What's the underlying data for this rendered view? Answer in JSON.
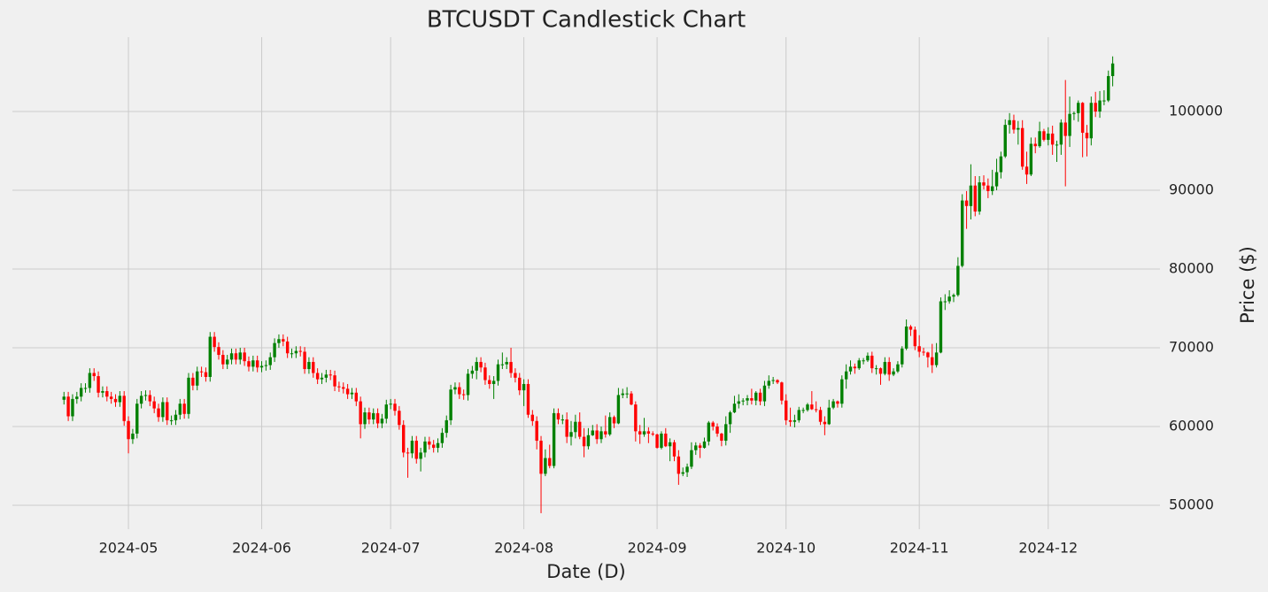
{
  "chart_data": {
    "type": "candlestick",
    "title": "BTCUSDT Candlestick Chart",
    "x_label": "Date (D)",
    "y_label": "Price ($)",
    "x": [
      "2024-04-16",
      "2024-04-17",
      "2024-04-18",
      "2024-04-19",
      "2024-04-20",
      "2024-04-21",
      "2024-04-22",
      "2024-04-23",
      "2024-04-24",
      "2024-04-25",
      "2024-04-26",
      "2024-04-27",
      "2024-04-28",
      "2024-04-29",
      "2024-04-30",
      "2024-05-01",
      "2024-05-02",
      "2024-05-03",
      "2024-05-04",
      "2024-05-05",
      "2024-05-06",
      "2024-05-07",
      "2024-05-08",
      "2024-05-09",
      "2024-05-10",
      "2024-05-11",
      "2024-05-12",
      "2024-05-13",
      "2024-05-14",
      "2024-05-15",
      "2024-05-16",
      "2024-05-17",
      "2024-05-18",
      "2024-05-19",
      "2024-05-20",
      "2024-05-21",
      "2024-05-22",
      "2024-05-23",
      "2024-05-24",
      "2024-05-25",
      "2024-05-26",
      "2024-05-27",
      "2024-05-28",
      "2024-05-29",
      "2024-05-30",
      "2024-05-31",
      "2024-06-01",
      "2024-06-02",
      "2024-06-03",
      "2024-06-04",
      "2024-06-05",
      "2024-06-06",
      "2024-06-07",
      "2024-06-08",
      "2024-06-09",
      "2024-06-10",
      "2024-06-11",
      "2024-06-12",
      "2024-06-13",
      "2024-06-14",
      "2024-06-15",
      "2024-06-16",
      "2024-06-17",
      "2024-06-18",
      "2024-06-19",
      "2024-06-20",
      "2024-06-21",
      "2024-06-22",
      "2024-06-23",
      "2024-06-24",
      "2024-06-25",
      "2024-06-26",
      "2024-06-27",
      "2024-06-28",
      "2024-06-29",
      "2024-06-30",
      "2024-07-01",
      "2024-07-02",
      "2024-07-03",
      "2024-07-04",
      "2024-07-05",
      "2024-07-06",
      "2024-07-07",
      "2024-07-08",
      "2024-07-09",
      "2024-07-10",
      "2024-07-11",
      "2024-07-12",
      "2024-07-13",
      "2024-07-14",
      "2024-07-15",
      "2024-07-16",
      "2024-07-17",
      "2024-07-18",
      "2024-07-19",
      "2024-07-20",
      "2024-07-21",
      "2024-07-22",
      "2024-07-23",
      "2024-07-24",
      "2024-07-25",
      "2024-07-26",
      "2024-07-27",
      "2024-07-28",
      "2024-07-29",
      "2024-07-30",
      "2024-07-31",
      "2024-08-01",
      "2024-08-02",
      "2024-08-03",
      "2024-08-04",
      "2024-08-05",
      "2024-08-06",
      "2024-08-07",
      "2024-08-08",
      "2024-08-09",
      "2024-08-10",
      "2024-08-11",
      "2024-08-12",
      "2024-08-13",
      "2024-08-14",
      "2024-08-15",
      "2024-08-16",
      "2024-08-17",
      "2024-08-18",
      "2024-08-19",
      "2024-08-20",
      "2024-08-21",
      "2024-08-22",
      "2024-08-23",
      "2024-08-24",
      "2024-08-25",
      "2024-08-26",
      "2024-08-27",
      "2024-08-28",
      "2024-08-29",
      "2024-08-30",
      "2024-08-31",
      "2024-09-01",
      "2024-09-02",
      "2024-09-03",
      "2024-09-04",
      "2024-09-05",
      "2024-09-06",
      "2024-09-07",
      "2024-09-08",
      "2024-09-09",
      "2024-09-10",
      "2024-09-11",
      "2024-09-12",
      "2024-09-13",
      "2024-09-14",
      "2024-09-15",
      "2024-09-16",
      "2024-09-17",
      "2024-09-18",
      "2024-09-19",
      "2024-09-20",
      "2024-09-21",
      "2024-09-22",
      "2024-09-23",
      "2024-09-24",
      "2024-09-25",
      "2024-09-26",
      "2024-09-27",
      "2024-09-28",
      "2024-09-29",
      "2024-09-30",
      "2024-10-01",
      "2024-10-02",
      "2024-10-03",
      "2024-10-04",
      "2024-10-05",
      "2024-10-06",
      "2024-10-07",
      "2024-10-08",
      "2024-10-09",
      "2024-10-10",
      "2024-10-11",
      "2024-10-12",
      "2024-10-13",
      "2024-10-14",
      "2024-10-15",
      "2024-10-16",
      "2024-10-17",
      "2024-10-18",
      "2024-10-19",
      "2024-10-20",
      "2024-10-21",
      "2024-10-22",
      "2024-10-23",
      "2024-10-24",
      "2024-10-25",
      "2024-10-26",
      "2024-10-27",
      "2024-10-28",
      "2024-10-29",
      "2024-10-30",
      "2024-10-31",
      "2024-11-01",
      "2024-11-02",
      "2024-11-03",
      "2024-11-04",
      "2024-11-05",
      "2024-11-06",
      "2024-11-07",
      "2024-11-08",
      "2024-11-09",
      "2024-11-10",
      "2024-11-11",
      "2024-11-12",
      "2024-11-13",
      "2024-11-14",
      "2024-11-15",
      "2024-11-16",
      "2024-11-17",
      "2024-11-18",
      "2024-11-19",
      "2024-11-20",
      "2024-11-21",
      "2024-11-22",
      "2024-11-23",
      "2024-11-24",
      "2024-11-25",
      "2024-11-26",
      "2024-11-27",
      "2024-11-28",
      "2024-11-29",
      "2024-11-30",
      "2024-12-01",
      "2024-12-02",
      "2024-12-03",
      "2024-12-04",
      "2024-12-05",
      "2024-12-06",
      "2024-12-07",
      "2024-12-08",
      "2024-12-09",
      "2024-12-10",
      "2024-12-11",
      "2024-12-12",
      "2024-12-13",
      "2024-12-14",
      "2024-12-15",
      "2024-12-16"
    ],
    "open": [
      63400,
      63800,
      61300,
      63500,
      63800,
      64900,
      64900,
      66800,
      66400,
      64300,
      64500,
      63800,
      63500,
      63100,
      63900,
      60700,
      58400,
      59100,
      62900,
      63900,
      64000,
      63200,
      62300,
      61200,
      63100,
      60800,
      60800,
      61500,
      62900,
      61600,
      66200,
      65200,
      67000,
      66900,
      66300,
      71400,
      70100,
      69100,
      67900,
      68500,
      69300,
      68500,
      69400,
      68300,
      67600,
      68400,
      67500,
      67700,
      67800,
      68800,
      70600,
      71100,
      70800,
      69300,
      69300,
      69600,
      69500,
      67300,
      68200,
      66800,
      66000,
      66200,
      66600,
      66500,
      65100,
      65000,
      64800,
      64100,
      64300,
      63200,
      60300,
      61800,
      60900,
      61700,
      60400,
      61000,
      62800,
      62900,
      62000,
      60200,
      56700,
      56600,
      58200,
      55900,
      56700,
      58100,
      57700,
      57300,
      57900,
      59200,
      60800,
      64700,
      65000,
      64100,
      64000,
      66700,
      67100,
      68200,
      67500,
      65900,
      65400,
      65800,
      67900,
      67900,
      68200,
      66800,
      66200,
      64600,
      65400,
      61500,
      60700,
      58200,
      54000,
      56000,
      55000,
      61700,
      60900,
      60900,
      58700,
      59300,
      60600,
      58700,
      57500,
      58900,
      59500,
      58400,
      59400,
      59000,
      61200,
      60400,
      64000,
      64200,
      64200,
      62800,
      59400,
      59000,
      59400,
      59100,
      59000,
      57300,
      59100,
      57500,
      58000,
      56200,
      54000,
      54200,
      54900,
      57000,
      57600,
      57300,
      58100,
      60500,
      60000,
      59100,
      58200,
      60300,
      61800,
      62900,
      63200,
      63300,
      63600,
      63300,
      64300,
      63200,
      65200,
      65800,
      65900,
      65600,
      63300,
      60800,
      60600,
      60800,
      62100,
      62100,
      62800,
      62200,
      62100,
      60600,
      60300,
      62400,
      63200,
      62900,
      66000,
      67000,
      67600,
      67400,
      68400,
      68400,
      69000,
      67400,
      67400,
      66700,
      68200,
      66600,
      67000,
      67900,
      69900,
      72700,
      72300,
      70200,
      69500,
      69400,
      68800,
      67800,
      69400,
      75900,
      75900,
      76500,
      76700,
      80400,
      88700,
      88000,
      90600,
      87300,
      91000,
      90600,
      89900,
      90500,
      92300,
      94300,
      98300,
      98900,
      97700,
      97900,
      93000,
      92000,
      95900,
      95600,
      97500,
      96400,
      97200,
      95800,
      95800,
      98600,
      96900,
      99700,
      99800,
      101100,
      97300,
      96600,
      101100,
      100000,
      101400,
      101400,
      104500
    ],
    "high": [
      64400,
      64400,
      64100,
      64400,
      65500,
      65500,
      67400,
      67400,
      67000,
      65100,
      65100,
      64400,
      64100,
      64500,
      64500,
      61300,
      59700,
      63500,
      64500,
      64600,
      64600,
      63800,
      62900,
      63700,
      63700,
      61400,
      62100,
      63500,
      63500,
      66800,
      66800,
      67600,
      67600,
      67500,
      72000,
      72000,
      70700,
      69700,
      69100,
      69900,
      69900,
      70000,
      70000,
      68900,
      69000,
      69000,
      68300,
      68400,
      69400,
      71200,
      71700,
      71700,
      71400,
      69900,
      70200,
      70200,
      70100,
      68800,
      68800,
      67400,
      66800,
      67200,
      67200,
      67100,
      65700,
      65600,
      65400,
      64900,
      64900,
      63800,
      62400,
      62400,
      62300,
      62300,
      61600,
      63400,
      63500,
      63500,
      62600,
      60800,
      57300,
      58800,
      58800,
      57300,
      58700,
      58700,
      58300,
      58500,
      59800,
      61400,
      65300,
      65600,
      65600,
      64700,
      67300,
      67700,
      68800,
      68800,
      68100,
      66500,
      66400,
      68500,
      69400,
      68800,
      70000,
      67400,
      66800,
      66000,
      66000,
      62100,
      61300,
      58800,
      57100,
      57700,
      62300,
      62300,
      61500,
      61800,
      60700,
      61500,
      61800,
      59800,
      59800,
      60200,
      60300,
      60000,
      61400,
      61800,
      61400,
      64900,
      64800,
      65000,
      64500,
      63200,
      60200,
      61100,
      59900,
      59400,
      59100,
      59400,
      59800,
      58500,
      58300,
      57000,
      54800,
      55300,
      58000,
      58000,
      57900,
      58600,
      60700,
      60700,
      60400,
      59200,
      61300,
      62000,
      63900,
      64100,
      63600,
      64000,
      64800,
      64500,
      64800,
      65800,
      66500,
      66300,
      66000,
      65700,
      64100,
      62400,
      61500,
      62500,
      62400,
      63000,
      64500,
      63200,
      62500,
      61300,
      63400,
      63500,
      63300,
      66500,
      67900,
      68400,
      68000,
      68700,
      68700,
      69400,
      69500,
      67800,
      67500,
      68800,
      68800,
      67400,
      68300,
      70200,
      73600,
      72900,
      72700,
      71600,
      70000,
      69500,
      70500,
      70600,
      76400,
      76800,
      77300,
      76900,
      81500,
      89500,
      89900,
      93300,
      91800,
      91800,
      91900,
      91500,
      92600,
      94000,
      94900,
      99000,
      99800,
      99600,
      98800,
      98900,
      94900,
      96700,
      96700,
      98700,
      97800,
      98000,
      98200,
      96300,
      99000,
      104000,
      101900,
      100000,
      101400,
      101200,
      98300,
      101900,
      102500,
      102600,
      102700,
      105200,
      107000
    ],
    "low": [
      62800,
      60700,
      60700,
      62900,
      63200,
      64300,
      64300,
      65800,
      63700,
      63700,
      63200,
      62900,
      62500,
      62500,
      60100,
      56600,
      57800,
      58500,
      62300,
      63300,
      62600,
      61700,
      60600,
      60600,
      60200,
      60200,
      60200,
      60900,
      61000,
      61000,
      64600,
      64600,
      66300,
      65700,
      65700,
      69500,
      68500,
      67300,
      67300,
      67900,
      67900,
      67900,
      67700,
      67000,
      67000,
      66900,
      66900,
      67100,
      67200,
      68200,
      70000,
      70200,
      68700,
      68700,
      68700,
      68900,
      66700,
      66700,
      66200,
      65400,
      65400,
      65600,
      65900,
      64500,
      64400,
      64200,
      63500,
      63500,
      62600,
      58500,
      59700,
      60300,
      60300,
      59800,
      59800,
      60400,
      62200,
      61400,
      59600,
      56100,
      53500,
      56000,
      55300,
      54300,
      56100,
      57100,
      56700,
      56700,
      57300,
      58600,
      60200,
      64100,
      63500,
      63400,
      63300,
      66100,
      66000,
      66900,
      65300,
      64800,
      63500,
      65200,
      67300,
      67300,
      66200,
      65600,
      64000,
      62600,
      61100,
      60100,
      57100,
      49000,
      53700,
      54700,
      54700,
      60300,
      60300,
      57900,
      57600,
      58500,
      58400,
      56100,
      57100,
      58800,
      57800,
      57900,
      58600,
      58800,
      59800,
      60300,
      63600,
      63600,
      62700,
      58100,
      57800,
      58700,
      57900,
      58800,
      57200,
      57100,
      57400,
      55600,
      55600,
      52600,
      53700,
      53600,
      54600,
      56400,
      56000,
      57200,
      57600,
      59500,
      58700,
      57500,
      57600,
      59200,
      61700,
      62300,
      62700,
      62700,
      62800,
      62700,
      62700,
      62600,
      64800,
      65400,
      65400,
      62800,
      60200,
      60000,
      59900,
      60500,
      61700,
      61900,
      62100,
      61800,
      60200,
      58900,
      60200,
      62200,
      62400,
      62400,
      64800,
      66600,
      66700,
      67200,
      67900,
      68200,
      66800,
      66600,
      65300,
      66500,
      65800,
      66400,
      66800,
      67500,
      69700,
      71500,
      69700,
      68800,
      69000,
      67500,
      66800,
      67500,
      69300,
      74800,
      75600,
      75800,
      76500,
      80200,
      85100,
      86300,
      86700,
      86900,
      90100,
      89000,
      89400,
      90000,
      91500,
      94100,
      97200,
      97200,
      95800,
      92600,
      90800,
      91800,
      94700,
      95400,
      96200,
      95700,
      94500,
      93600,
      94500,
      90500,
      95500,
      98900,
      98700,
      94200,
      94300,
      95700,
      99300,
      99200,
      100800,
      101200,
      103200
    ],
    "close": [
      63800,
      61300,
      63500,
      63800,
      64900,
      64900,
      66800,
      66400,
      64300,
      64500,
      63800,
      63500,
      63100,
      63900,
      60700,
      58400,
      59100,
      62900,
      63900,
      64000,
      63200,
      62300,
      61200,
      63100,
      60800,
      60800,
      61500,
      62900,
      61600,
      66200,
      65200,
      67000,
      66900,
      66300,
      71400,
      70100,
      69100,
      67900,
      68500,
      69300,
      68500,
      69400,
      68300,
      67600,
      68400,
      67500,
      67700,
      67800,
      68800,
      70600,
      71100,
      70800,
      69300,
      69300,
      69600,
      69500,
      67300,
      68200,
      66800,
      66000,
      66200,
      66600,
      66500,
      65100,
      65000,
      64800,
      64100,
      64300,
      63200,
      60300,
      61800,
      60900,
      61700,
      60400,
      61000,
      62800,
      62900,
      62000,
      60200,
      56700,
      56600,
      58200,
      55900,
      56700,
      58100,
      57700,
      57300,
      57900,
      59200,
      60800,
      64700,
      65000,
      64100,
      64000,
      66700,
      67100,
      68200,
      67500,
      65900,
      65400,
      65800,
      67900,
      67900,
      68200,
      66800,
      66200,
      64600,
      65400,
      61500,
      60700,
      58200,
      54000,
      56000,
      55000,
      61700,
      60900,
      60900,
      58700,
      59300,
      60600,
      58700,
      57500,
      58900,
      59500,
      58400,
      59400,
      59000,
      61200,
      60400,
      64000,
      64200,
      64200,
      62800,
      59400,
      59000,
      59400,
      59100,
      59000,
      57300,
      59100,
      57500,
      58000,
      56200,
      54000,
      54200,
      54900,
      57000,
      57600,
      57300,
      58100,
      60500,
      60000,
      59100,
      58200,
      60300,
      61800,
      62900,
      63200,
      63300,
      63600,
      63300,
      64300,
      63200,
      65200,
      65800,
      65900,
      65600,
      63300,
      60800,
      60600,
      60800,
      62100,
      62100,
      62800,
      62200,
      62100,
      60600,
      60300,
      62400,
      63200,
      62900,
      66000,
      67000,
      67600,
      67400,
      68400,
      68400,
      69000,
      67400,
      67400,
      66700,
      68200,
      66600,
      67000,
      67900,
      69900,
      72700,
      72300,
      70200,
      69500,
      69400,
      68800,
      67800,
      69400,
      75900,
      75900,
      76500,
      76700,
      80400,
      88700,
      88000,
      90600,
      87300,
      91000,
      90600,
      89900,
      90500,
      92300,
      94300,
      98300,
      98900,
      97700,
      97900,
      93000,
      92000,
      95900,
      95600,
      97500,
      96400,
      97200,
      95800,
      95800,
      98600,
      96900,
      99700,
      99800,
      101100,
      97300,
      96600,
      101100,
      100000,
      101400,
      101400,
      104500,
      106100
    ],
    "up_color": "green",
    "down_color": "red",
    "xlim": [
      "2024-04-04",
      "2024-12-27"
    ],
    "ylim": [
      46970,
      109440
    ],
    "xticks": [
      {
        "value": "2024-05-01",
        "label": "2024-05"
      },
      {
        "value": "2024-06-01",
        "label": "2024-06"
      },
      {
        "value": "2024-07-01",
        "label": "2024-07"
      },
      {
        "value": "2024-08-01",
        "label": "2024-08"
      },
      {
        "value": "2024-09-01",
        "label": "2024-09"
      },
      {
        "value": "2024-10-01",
        "label": "2024-10"
      },
      {
        "value": "2024-11-01",
        "label": "2024-11"
      },
      {
        "value": "2024-12-01",
        "label": "2024-12"
      }
    ],
    "yticks": [
      50000,
      60000,
      70000,
      80000,
      90000,
      100000
    ],
    "grid": true,
    "y_axis_side": "right"
  }
}
